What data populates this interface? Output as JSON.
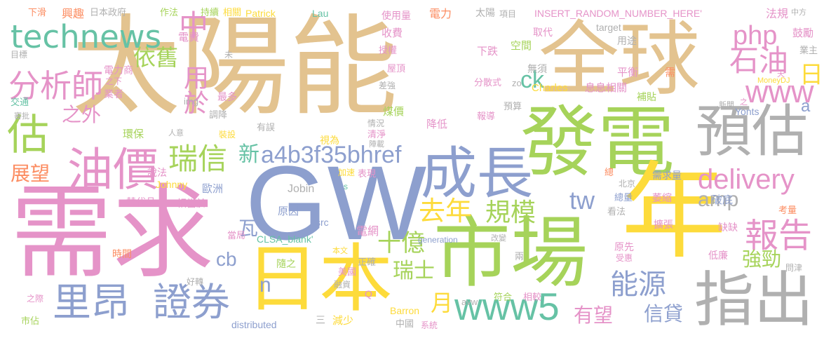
{
  "colors": {
    "tan": "#e3c38f",
    "green": "#a6d35a",
    "gray": "#b0b0b0",
    "blue": "#8d9fce",
    "yellow": "#fddb3b",
    "pink": "#e593c8",
    "teal": "#66c2a5",
    "orange": "#fc8d62",
    "dark_gray": "#9b9b9b"
  },
  "words": [
    {
      "text": "太陽能",
      "color": "tan"
    },
    {
      "text": "全球",
      "color": "tan"
    },
    {
      "text": "需求",
      "color": "pink"
    },
    {
      "text": "GW",
      "color": "blue"
    },
    {
      "text": "發電",
      "color": "green"
    },
    {
      "text": "市場",
      "color": "green"
    },
    {
      "text": "年",
      "color": "yellow"
    },
    {
      "text": "日本",
      "color": "yellow"
    },
    {
      "text": "預估",
      "color": "gray"
    },
    {
      "text": "指出",
      "color": "gray"
    },
    {
      "text": "成長",
      "color": "blue"
    },
    {
      "text": "油價",
      "color": "pink"
    },
    {
      "text": "technews",
      "color": "teal"
    },
    {
      "text": "估",
      "color": "green"
    },
    {
      "text": "里昂",
      "color": "blue"
    },
    {
      "text": "證券",
      "color": "blue"
    },
    {
      "text": "www5",
      "color": "teal"
    },
    {
      "text": "報告",
      "color": "pink"
    },
    {
      "text": "分析師",
      "color": "pink"
    },
    {
      "text": "瑞信",
      "color": "green"
    },
    {
      "text": "中",
      "color": "pink"
    },
    {
      "text": "php",
      "color": "pink"
    },
    {
      "text": "www",
      "color": "pink"
    },
    {
      "text": "石油",
      "color": "pink"
    },
    {
      "text": "delivery",
      "color": "pink"
    },
    {
      "text": "能源",
      "color": "blue"
    },
    {
      "text": "a4b3f35bhref",
      "color": "blue"
    },
    {
      "text": "去年",
      "color": "yellow"
    },
    {
      "text": "規模",
      "color": "green"
    },
    {
      "text": "用於",
      "color": "pink"
    },
    {
      "text": "依舊",
      "color": "green"
    },
    {
      "text": "之外",
      "color": "pink"
    },
    {
      "text": "日",
      "color": "yellow"
    },
    {
      "text": "ck",
      "color": "teal"
    },
    {
      "text": "tw",
      "color": "blue"
    },
    {
      "text": "amp",
      "color": "gray"
    },
    {
      "text": "新",
      "color": "teal"
    },
    {
      "text": "展望",
      "color": "orange"
    },
    {
      "text": "cb",
      "color": "blue"
    },
    {
      "text": "瓦",
      "color": "blue"
    },
    {
      "text": "十億",
      "color": "green"
    },
    {
      "text": "瑞士",
      "color": "green"
    },
    {
      "text": "n",
      "color": "blue"
    },
    {
      "text": "月",
      "color": "yellow"
    },
    {
      "text": "有望",
      "color": "pink"
    },
    {
      "text": "信貸",
      "color": "blue"
    },
    {
      "text": "強勁",
      "color": "green"
    },
    {
      "text": "a",
      "color": "blue"
    },
    {
      "text": "下滑",
      "color": "orange"
    },
    {
      "text": "興趣",
      "color": "orange"
    },
    {
      "text": "日本政府",
      "color": "gray"
    },
    {
      "text": "作法",
      "color": "green"
    },
    {
      "text": "持續",
      "color": "green"
    },
    {
      "text": "相關",
      "color": "yellow"
    },
    {
      "text": "Patrick",
      "color": "yellow"
    },
    {
      "text": "Lau",
      "color": "teal"
    },
    {
      "text": "使用量",
      "color": "pink"
    },
    {
      "text": "電力",
      "color": "orange"
    },
    {
      "text": "太陽",
      "color": "gray"
    },
    {
      "text": "項目",
      "color": "gray"
    },
    {
      "text": "INSERT_RANDOM_NUMBER_HERE'",
      "color": "pink"
    },
    {
      "text": "法規",
      "color": "pink"
    },
    {
      "text": "中方",
      "color": "gray"
    },
    {
      "text": "電費",
      "color": "pink"
    },
    {
      "text": "收費",
      "color": "pink"
    },
    {
      "text": "取代",
      "color": "pink"
    },
    {
      "text": "target",
      "color": "gray"
    },
    {
      "text": "鼓勵",
      "color": "pink"
    },
    {
      "text": "業主",
      "color": "gray"
    },
    {
      "text": "目標",
      "color": "gray"
    },
    {
      "text": "未",
      "color": "gray"
    },
    {
      "text": "電力商",
      "color": "pink"
    },
    {
      "text": "授權",
      "color": "pink"
    },
    {
      "text": "下跌",
      "color": "pink"
    },
    {
      "text": "空間",
      "color": "green"
    },
    {
      "text": "用途",
      "color": "gray"
    },
    {
      "text": "之下",
      "color": "pink"
    },
    {
      "text": "業者",
      "color": "pink"
    },
    {
      "text": "屋頂",
      "color": "pink"
    },
    {
      "text": "無須",
      "color": "gray"
    },
    {
      "text": "平衡",
      "color": "pink"
    },
    {
      "text": "需",
      "color": "orange"
    },
    {
      "text": "MoneyDJ",
      "color": "yellow"
    },
    {
      "text": "交通",
      "color": "teal"
    },
    {
      "text": "img",
      "color": "gray"
    },
    {
      "text": "最多",
      "color": "pink"
    },
    {
      "text": "差強",
      "color": "gray"
    },
    {
      "text": "分散式",
      "color": "pink"
    },
    {
      "text": "zo",
      "color": "gray"
    },
    {
      "text": "Charles",
      "color": "yellow"
    },
    {
      "text": "息息相關",
      "color": "pink"
    },
    {
      "text": "審批",
      "color": "gray"
    },
    {
      "text": "調降",
      "color": "gray"
    },
    {
      "text": "煤價",
      "color": "green"
    },
    {
      "text": "補貼",
      "color": "green"
    },
    {
      "text": "預算",
      "color": "gray"
    },
    {
      "text": "新聞",
      "color": "gray"
    },
    {
      "text": "之",
      "color": "pink"
    },
    {
      "text": "Yonts",
      "color": "blue"
    },
    {
      "text": "環保",
      "color": "green"
    },
    {
      "text": "人意",
      "color": "gray"
    },
    {
      "text": "裝設",
      "color": "yellow"
    },
    {
      "text": "有誤",
      "color": "gray"
    },
    {
      "text": "情況",
      "color": "gray"
    },
    {
      "text": "降低",
      "color": "pink"
    },
    {
      "text": "報導",
      "color": "pink"
    },
    {
      "text": "天",
      "color": "pink"
    },
    {
      "text": "清淨",
      "color": "pink"
    },
    {
      "text": "視為",
      "color": "yellow"
    },
    {
      "text": "陣載",
      "color": "gray"
    },
    {
      "text": "說法",
      "color": "pink"
    },
    {
      "text": "Johnny",
      "color": "yellow"
    },
    {
      "text": "歐洲",
      "color": "blue"
    },
    {
      "text": "Jobin",
      "color": "gray"
    },
    {
      "text": "加速",
      "color": "yellow"
    },
    {
      "text": "s",
      "color": "teal"
    },
    {
      "text": "表現",
      "color": "pink"
    },
    {
      "text": "總",
      "color": "orange"
    },
    {
      "text": "北京",
      "color": "gray"
    },
    {
      "text": "需求量",
      "color": "blue"
    },
    {
      "text": "替代品",
      "color": "pink"
    },
    {
      "text": "相當於",
      "color": "pink"
    },
    {
      "text": "總量",
      "color": "blue"
    },
    {
      "text": "萎縮",
      "color": "pink"
    },
    {
      "text": "破底",
      "color": "blue"
    },
    {
      "text": "看法",
      "color": "gray"
    },
    {
      "text": "考量",
      "color": "orange"
    },
    {
      "text": "src",
      "color": "blue"
    },
    {
      "text": "原因",
      "color": "blue"
    },
    {
      "text": "擴張",
      "color": "pink"
    },
    {
      "text": "缺缺",
      "color": "pink"
    },
    {
      "text": "電網",
      "color": "pink"
    },
    {
      "text": "當局",
      "color": "pink"
    },
    {
      "text": "CLSA_blank'",
      "color": "teal"
    },
    {
      "text": "本文",
      "color": "yellow"
    },
    {
      "text": "generation",
      "color": "blue"
    },
    {
      "text": "改變",
      "color": "gray"
    },
    {
      "text": "原先",
      "color": "pink"
    },
    {
      "text": "受惠",
      "color": "pink"
    },
    {
      "text": "時間",
      "color": "orange"
    },
    {
      "text": "隨之",
      "color": "green"
    },
    {
      "text": "正確",
      "color": "gray"
    },
    {
      "text": "兩",
      "color": "gray"
    },
    {
      "text": "低廉",
      "color": "pink"
    },
    {
      "text": "問津",
      "color": "gray"
    },
    {
      "text": "美國",
      "color": "pink"
    },
    {
      "text": "融資",
      "color": "gray"
    },
    {
      "text": "好轉",
      "color": "gray"
    },
    {
      "text": "Q",
      "color": "pink"
    },
    {
      "text": "符合",
      "color": "green"
    },
    {
      "text": "相較",
      "color": "pink"
    },
    {
      "text": "之際",
      "color": "pink"
    },
    {
      "text": "Barron",
      "color": "yellow"
    },
    {
      "text": "avw",
      "color": "gray"
    },
    {
      "text": "市佔",
      "color": "green"
    },
    {
      "text": "distributed",
      "color": "blue"
    },
    {
      "text": "三",
      "color": "gray"
    },
    {
      "text": "減少",
      "color": "yellow"
    },
    {
      "text": "中國",
      "color": "gray"
    },
    {
      "text": "系統",
      "color": "pink"
    }
  ]
}
